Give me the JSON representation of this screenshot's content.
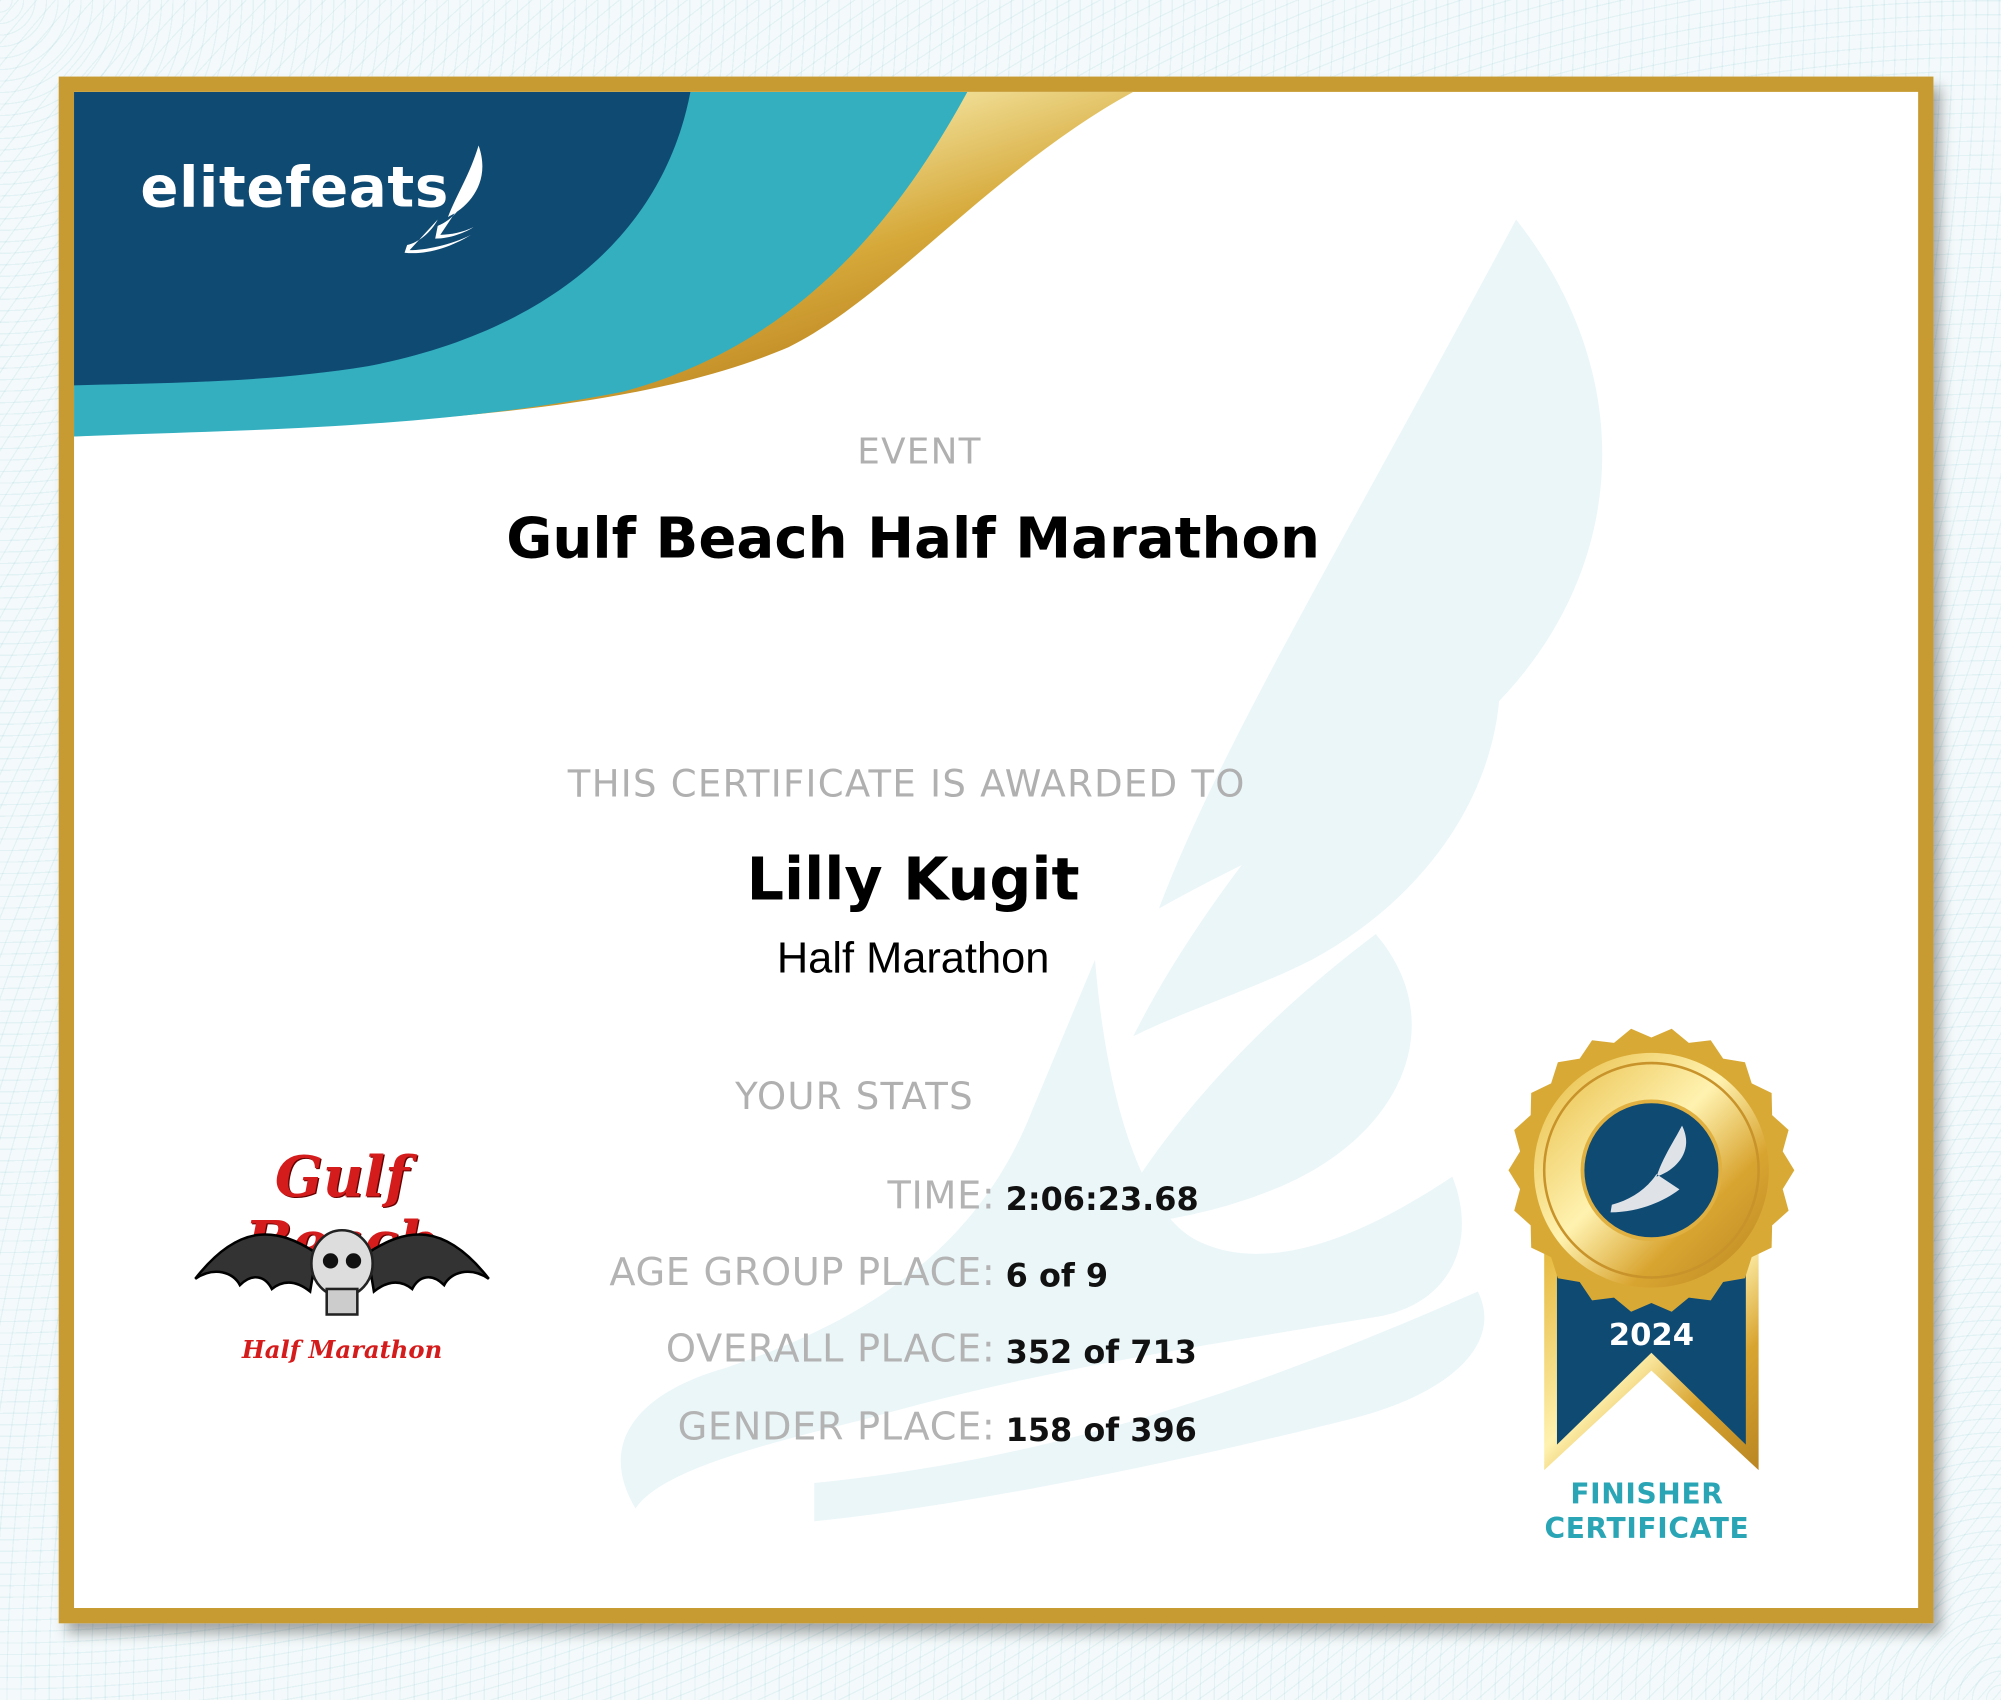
{
  "brand": {
    "name": "elitefeats",
    "colors": {
      "navy": "#0f4a73",
      "teal": "#33afc0",
      "gold": "#c79b31"
    }
  },
  "event": {
    "label": "EVENT",
    "name": "Gulf Beach Half Marathon"
  },
  "award": {
    "label": "THIS CERTIFICATE IS AWARDED TO",
    "name": "Lilly Kugit",
    "race": "Half Marathon"
  },
  "stats": {
    "label": "YOUR STATS",
    "rows": [
      {
        "label": "TIME:",
        "value": "2:06:23.68"
      },
      {
        "label": "AGE GROUP PLACE:",
        "value": "6 of 9"
      },
      {
        "label": "OVERALL PLACE:",
        "value": "352 of 713"
      },
      {
        "label": "GENDER PLACE:",
        "value": "158 of 396"
      }
    ]
  },
  "event_logo": {
    "title": "Gulf Beach",
    "subtitle": "Half Marathon",
    "icon": "bat-winged-skull-icon"
  },
  "medal": {
    "year": "2024",
    "icon": "winged-foot-icon",
    "caption_line1": "FINISHER",
    "caption_line2": "CERTIFICATE"
  }
}
